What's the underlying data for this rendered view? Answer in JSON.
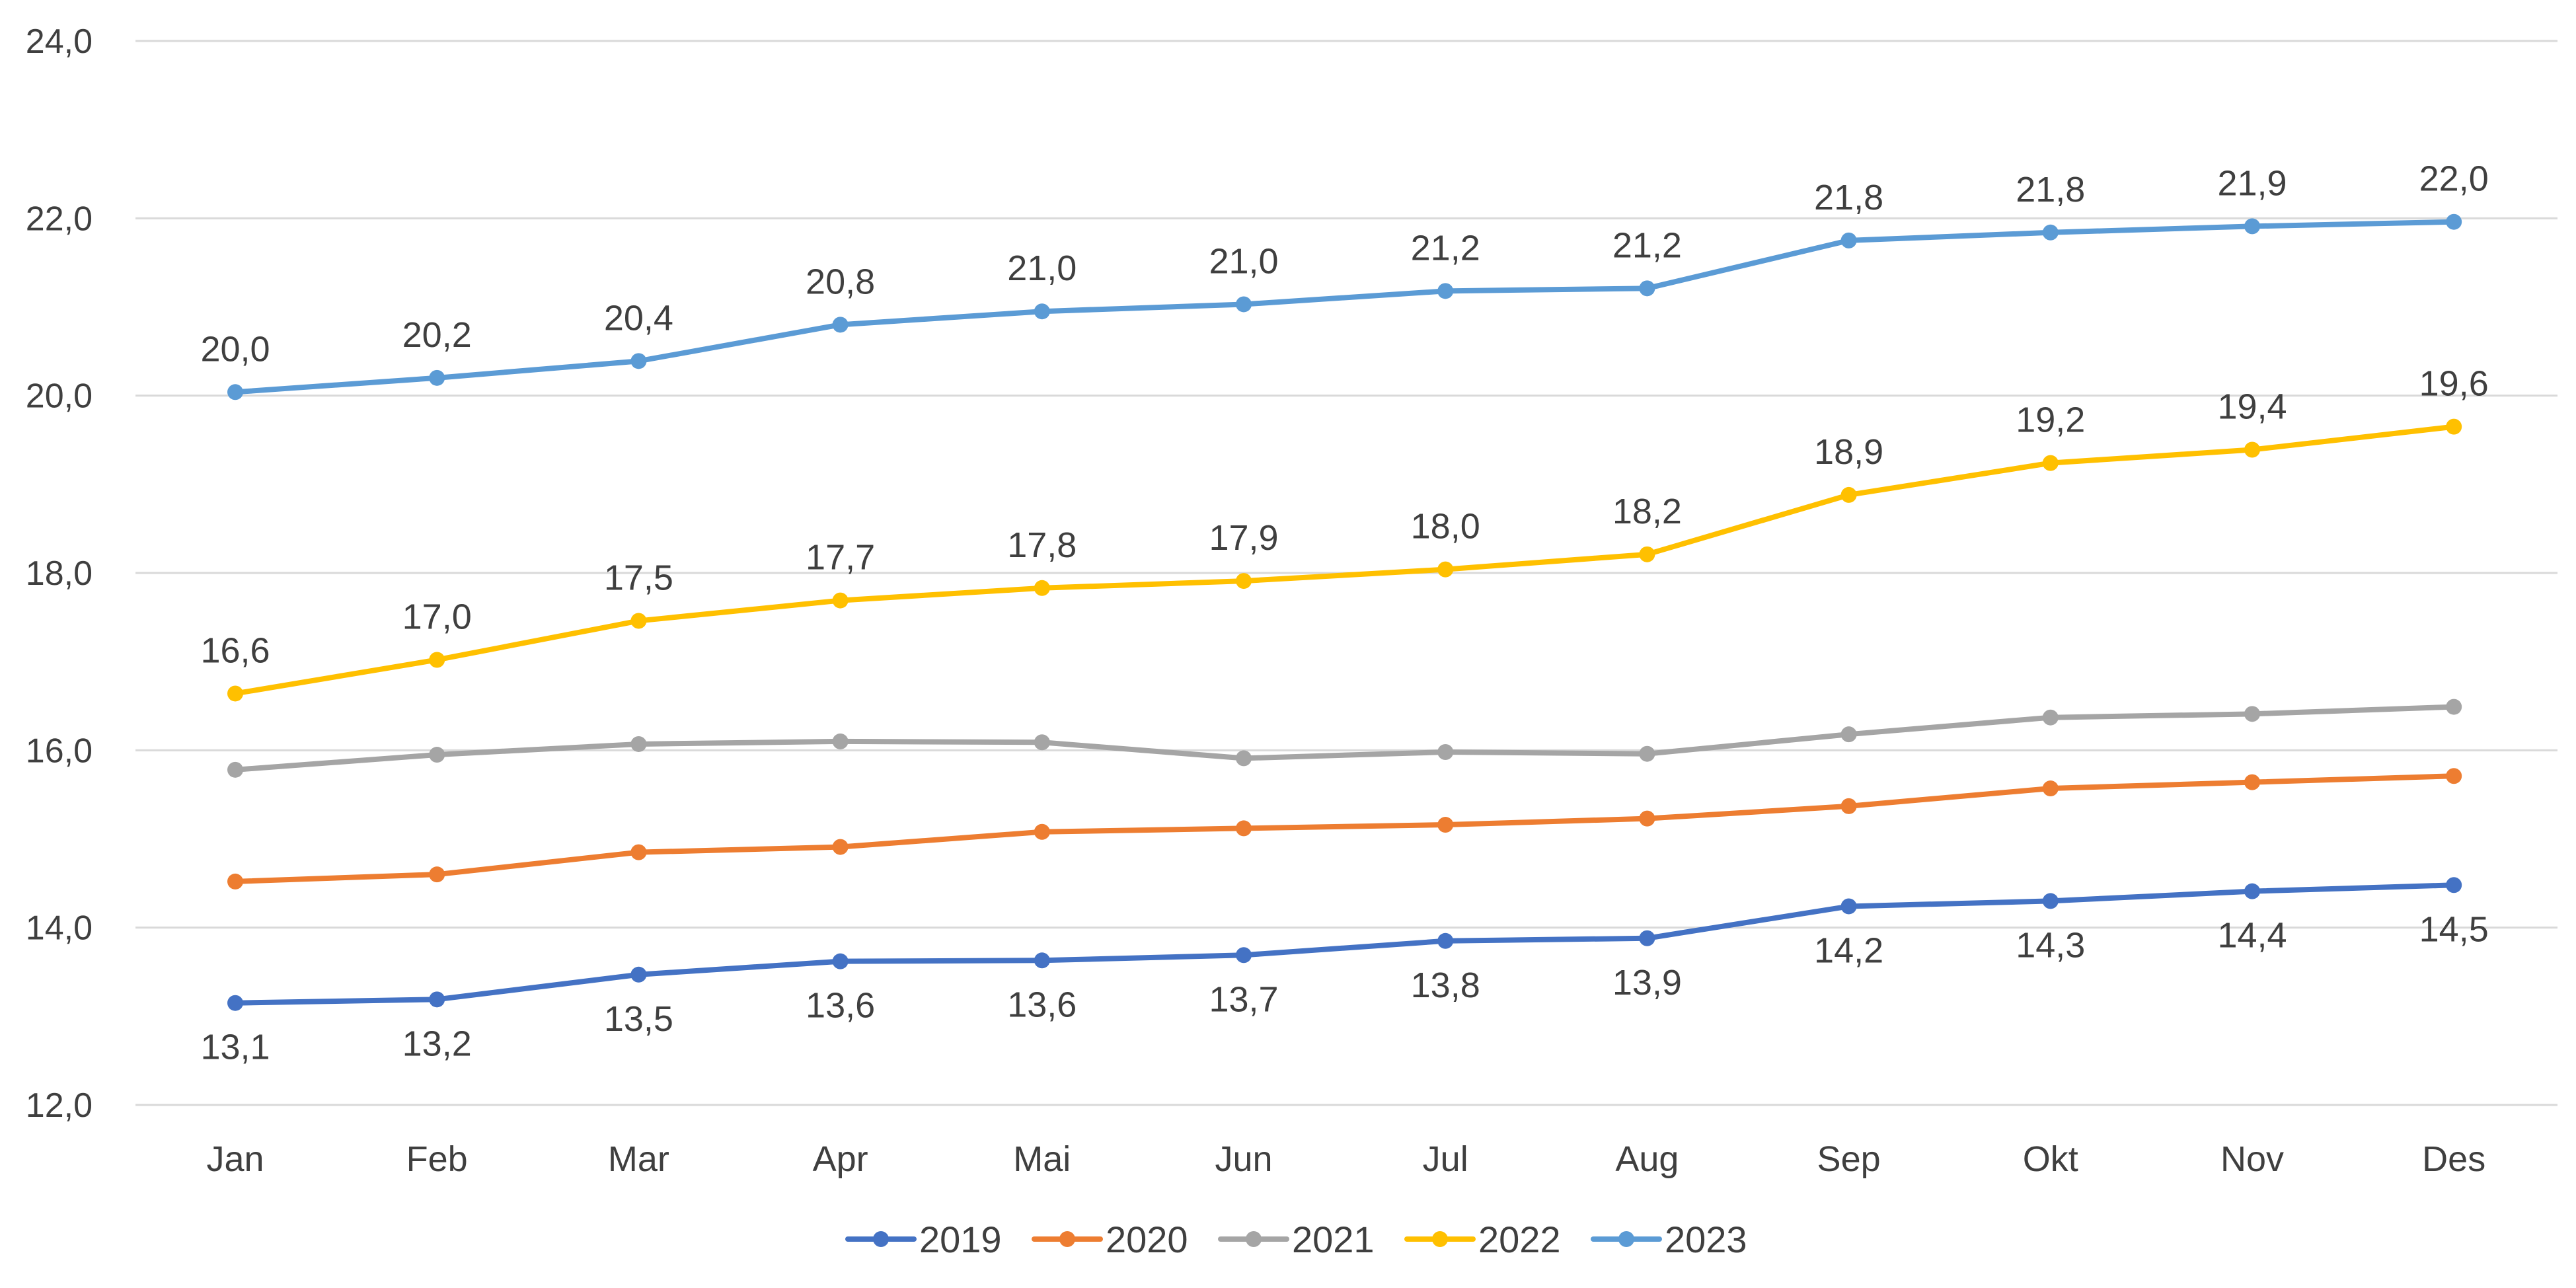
{
  "chart_data": {
    "type": "line",
    "title": "",
    "xlabel": "",
    "ylabel": "",
    "ylim": [
      12,
      24
    ],
    "yticks": [
      "12,0",
      "14,0",
      "16,0",
      "18,0",
      "20,0",
      "22,0",
      "24,0"
    ],
    "ytick_values": [
      12,
      14,
      16,
      18,
      20,
      22,
      24
    ],
    "grid": true,
    "legend_position": "bottom",
    "categories": [
      "Jan",
      "Feb",
      "Mar",
      "Apr",
      "Mai",
      "Jun",
      "Jul",
      "Aug",
      "Sep",
      "Okt",
      "Nov",
      "Des"
    ],
    "series": [
      {
        "name": "2019",
        "color": "#4472c4",
        "values": [
          13.15,
          13.19,
          13.47,
          13.62,
          13.63,
          13.69,
          13.85,
          13.88,
          14.24,
          14.3,
          14.41,
          14.48
        ],
        "labels": [
          "13,1",
          "13,2",
          "13,5",
          "13,6",
          "13,6",
          "13,7",
          "13,8",
          "13,9",
          "14,2",
          "14,3",
          "14,4",
          "14,5"
        ],
        "label_position": "below"
      },
      {
        "name": "2020",
        "color": "#ed7d31",
        "values": [
          14.52,
          14.6,
          14.85,
          14.91,
          15.08,
          15.12,
          15.16,
          15.23,
          15.37,
          15.57,
          15.64,
          15.71
        ],
        "labels": [],
        "label_position": "none"
      },
      {
        "name": "2021",
        "color": "#a5a5a5",
        "values": [
          15.78,
          15.95,
          16.07,
          16.1,
          16.09,
          15.91,
          15.98,
          15.96,
          16.18,
          16.37,
          16.41,
          16.49
        ],
        "labels": [],
        "label_position": "none"
      },
      {
        "name": "2022",
        "color": "#ffc000",
        "values": [
          16.64,
          17.02,
          17.46,
          17.69,
          17.83,
          17.91,
          18.04,
          18.21,
          18.88,
          19.24,
          19.39,
          19.65
        ],
        "labels": [
          "16,6",
          "17,0",
          "17,5",
          "17,7",
          "17,8",
          "17,9",
          "18,0",
          "18,2",
          "18,9",
          "19,2",
          "19,4",
          "19,6"
        ],
        "label_position": "above"
      },
      {
        "name": "2023",
        "color": "#5b9bd5",
        "values": [
          20.04,
          20.2,
          20.39,
          20.8,
          20.95,
          21.03,
          21.18,
          21.21,
          21.75,
          21.84,
          21.91,
          21.96
        ],
        "labels": [
          "20,0",
          "20,2",
          "20,4",
          "20,8",
          "21,0",
          "21,0",
          "21,2",
          "21,2",
          "21,8",
          "21,8",
          "21,9",
          "22,0"
        ],
        "label_position": "above"
      }
    ]
  },
  "colors": {
    "gridline": "#d9d9d9",
    "text": "#3f3f3f"
  }
}
